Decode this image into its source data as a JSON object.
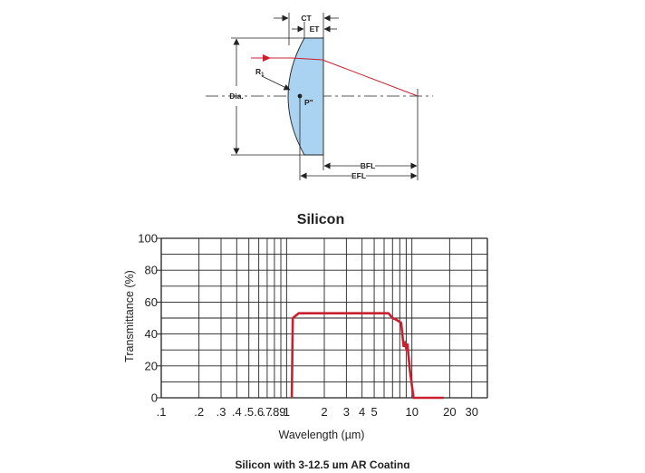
{
  "diagram": {
    "labels": {
      "ct": "CT",
      "et": "ET",
      "r1": "R",
      "r1_sub": "1",
      "dia": "Dia.",
      "principal": "P\"",
      "bfl": "BFL",
      "efl": "EFL"
    },
    "colors": {
      "lens_fill": "#a9d3f0",
      "ray": "#c8202f",
      "line": "#222222"
    }
  },
  "chart_data": {
    "type": "line",
    "title": "Silicon",
    "xlabel": "Wavelength (µm)",
    "ylabel": "Transmittance (%)",
    "x_scale": "log",
    "xlim": [
      0.1,
      40
    ],
    "ylim": [
      0,
      100
    ],
    "grid": true,
    "xtick_values": [
      0.1,
      0.2,
      0.3,
      0.4,
      0.5,
      0.6,
      0.7,
      0.8,
      0.9,
      1,
      2,
      3,
      4,
      5,
      6,
      7,
      8,
      9,
      10,
      20,
      30,
      40
    ],
    "xtick_labels": [
      {
        "value": 0.1,
        "label": ".1"
      },
      {
        "value": 0.2,
        "label": ".2"
      },
      {
        "value": 0.3,
        "label": ".3"
      },
      {
        "value": 0.4,
        "label": ".4"
      },
      {
        "value": 0.5,
        "label": ".5"
      },
      {
        "value": 0.6,
        "label": ".6"
      },
      {
        "value": 0.7,
        "label": ".7"
      },
      {
        "value": 0.8,
        "label": ".8"
      },
      {
        "value": 0.9,
        "label": ".9"
      },
      {
        "value": 1,
        "label": "1"
      },
      {
        "value": 2,
        "label": "2"
      },
      {
        "value": 3,
        "label": "3"
      },
      {
        "value": 4,
        "label": "4"
      },
      {
        "value": 5,
        "label": "5"
      },
      {
        "value": 10,
        "label": "10"
      },
      {
        "value": 20,
        "label": "20"
      },
      {
        "value": 30,
        "label": "30"
      }
    ],
    "ytick_labels": [
      {
        "value": 0,
        "label": "0"
      },
      {
        "value": 20,
        "label": "20"
      },
      {
        "value": 40,
        "label": "40"
      },
      {
        "value": 60,
        "label": "60"
      },
      {
        "value": 80,
        "label": "80"
      },
      {
        "value": 100,
        "label": "100"
      }
    ],
    "series": [
      {
        "color": "#c8202f",
        "x": [
          1.1,
          1.12,
          1.25,
          1.4,
          2,
          4,
          6.5,
          7.0,
          7.5,
          8.2,
          8.6,
          8.8,
          9.0,
          9.2,
          9.6,
          10.3,
          12,
          18
        ],
        "y": [
          0,
          50,
          53,
          53,
          53,
          53,
          53,
          50,
          49,
          47,
          32,
          34,
          31,
          34,
          18,
          0,
          0,
          0
        ]
      }
    ]
  },
  "caption": "Silicon with 3-12.5 µm AR Coating"
}
